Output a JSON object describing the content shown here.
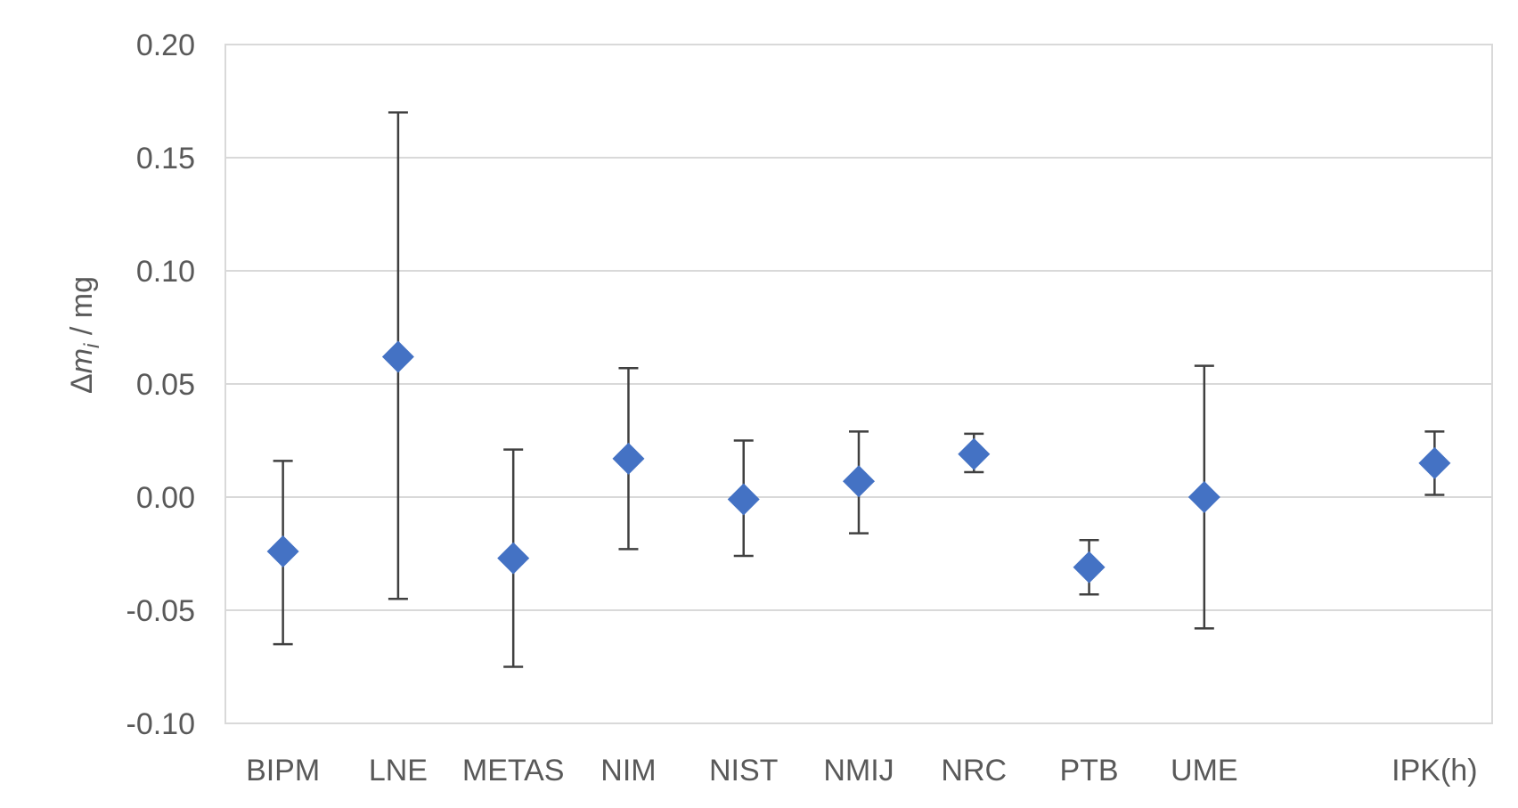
{
  "chart_data": {
    "type": "scatter",
    "title": "",
    "xlabel": "",
    "ylabel": {
      "prefix": "Δ",
      "var": "m",
      "subscript": "i",
      "unit": " / mg"
    },
    "ylim": [
      -0.1,
      0.2
    ],
    "yticks": [
      "0.20",
      "0.15",
      "0.10",
      "0.05",
      "0.00",
      "-0.05",
      "-0.10"
    ],
    "ytick_values": [
      0.2,
      0.15,
      0.1,
      0.05,
      0.0,
      -0.05,
      -0.1
    ],
    "grid": true,
    "legend": "none",
    "marker": "diamond",
    "marker_color": "#4472c4",
    "errorbar_color": "#404040",
    "series": [
      {
        "points": [
          {
            "category": "BIPM",
            "slot": 0,
            "y": -0.024,
            "err_low": -0.065,
            "err_high": 0.016
          },
          {
            "category": "LNE",
            "slot": 1,
            "y": 0.062,
            "err_low": -0.045,
            "err_high": 0.17
          },
          {
            "category": "METAS",
            "slot": 2,
            "y": -0.027,
            "err_low": -0.075,
            "err_high": 0.021
          },
          {
            "category": "NIM",
            "slot": 3,
            "y": 0.017,
            "err_low": -0.023,
            "err_high": 0.057
          },
          {
            "category": "NIST",
            "slot": 4,
            "y": -0.001,
            "err_low": -0.026,
            "err_high": 0.025
          },
          {
            "category": "NMIJ",
            "slot": 5,
            "y": 0.007,
            "err_low": -0.016,
            "err_high": 0.029
          },
          {
            "category": "NRC",
            "slot": 6,
            "y": 0.019,
            "err_low": 0.011,
            "err_high": 0.028
          },
          {
            "category": "PTB",
            "slot": 7,
            "y": -0.031,
            "err_low": -0.043,
            "err_high": -0.019
          },
          {
            "category": "UME",
            "slot": 8,
            "y": 0.0,
            "err_low": -0.058,
            "err_high": 0.058
          },
          {
            "category": "IPK(h)",
            "slot": 10,
            "y": 0.015,
            "err_low": 0.001,
            "err_high": 0.029
          }
        ]
      }
    ]
  }
}
